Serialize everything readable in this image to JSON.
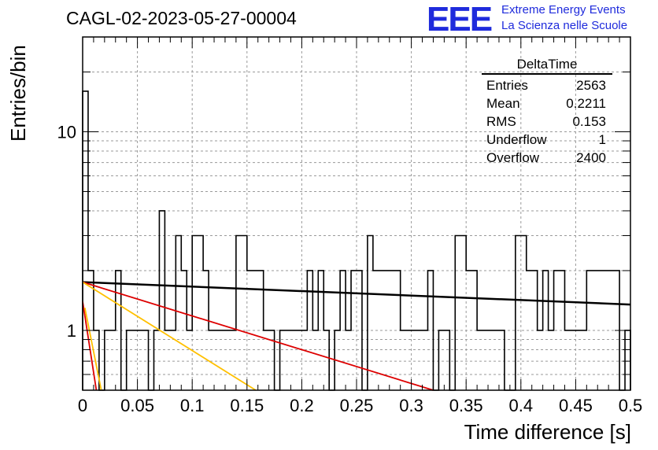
{
  "header": {
    "title": "CAGL-02-2023-05-27-00004",
    "logo_mark": "EEE",
    "logo_line1": "Extreme Energy Events",
    "logo_line2": "La Scienza nelle Scuole"
  },
  "stats": {
    "title": "DeltaTime",
    "rows": [
      {
        "label": "Entries",
        "value": "2563"
      },
      {
        "label": "Mean",
        "value": "0.2211"
      },
      {
        "label": "RMS",
        "value": "0.153"
      },
      {
        "label": "Underflow",
        "value": "1"
      },
      {
        "label": "Overflow",
        "value": "2400"
      }
    ]
  },
  "chart_data": {
    "type": "histogram",
    "xlabel": "Time difference [s]",
    "ylabel": "Entries/bin",
    "xlim": [
      0,
      0.5
    ],
    "ylim": [
      0.5,
      30
    ],
    "yscale": "log",
    "grid": true,
    "x_ticks": [
      "0",
      "0.05",
      "0.1",
      "0.15",
      "0.2",
      "0.25",
      "0.3",
      "0.35",
      "0.4",
      "0.45",
      "0.5"
    ],
    "y_ticks": [
      "1",
      "10"
    ],
    "bin_width": 0.005,
    "bin_counts": [
      16,
      2,
      1,
      0,
      1,
      1,
      2,
      0,
      1,
      1,
      1,
      1,
      0,
      1,
      4,
      1,
      1,
      3,
      2,
      1,
      3,
      3,
      2,
      1,
      1,
      1,
      1,
      1,
      3,
      3,
      2,
      2,
      2,
      1,
      1,
      0,
      1,
      1,
      1,
      1,
      1,
      2,
      1,
      2,
      1,
      0,
      1,
      2,
      1,
      2,
      2,
      0,
      3,
      2,
      2,
      2,
      2,
      2,
      1,
      1,
      1,
      1,
      1,
      2,
      0,
      1,
      1,
      0,
      3,
      3,
      2,
      2,
      1,
      1,
      1,
      1,
      1,
      0,
      0,
      3,
      3,
      2,
      2,
      1,
      2,
      1,
      2,
      2,
      1,
      1,
      1,
      1,
      2,
      2,
      2,
      2,
      2,
      2,
      0,
      1
    ],
    "fits": [
      {
        "color": "#000000",
        "points": [
          [
            0,
            1.75
          ],
          [
            0.5,
            1.35
          ]
        ]
      },
      {
        "color": "#dd0000",
        "points": [
          [
            0,
            1.75
          ],
          [
            0.32,
            0.5
          ]
        ]
      },
      {
        "color": "#ffc000",
        "points": [
          [
            0,
            1.75
          ],
          [
            0.158,
            0.5
          ]
        ]
      },
      {
        "color": "#dd0000",
        "points": [
          [
            0,
            1.4
          ],
          [
            0.0125,
            0.5
          ]
        ]
      },
      {
        "color": "#ffc000",
        "points": [
          [
            0.002,
            1.3
          ],
          [
            0.017,
            0.5
          ]
        ]
      }
    ]
  }
}
